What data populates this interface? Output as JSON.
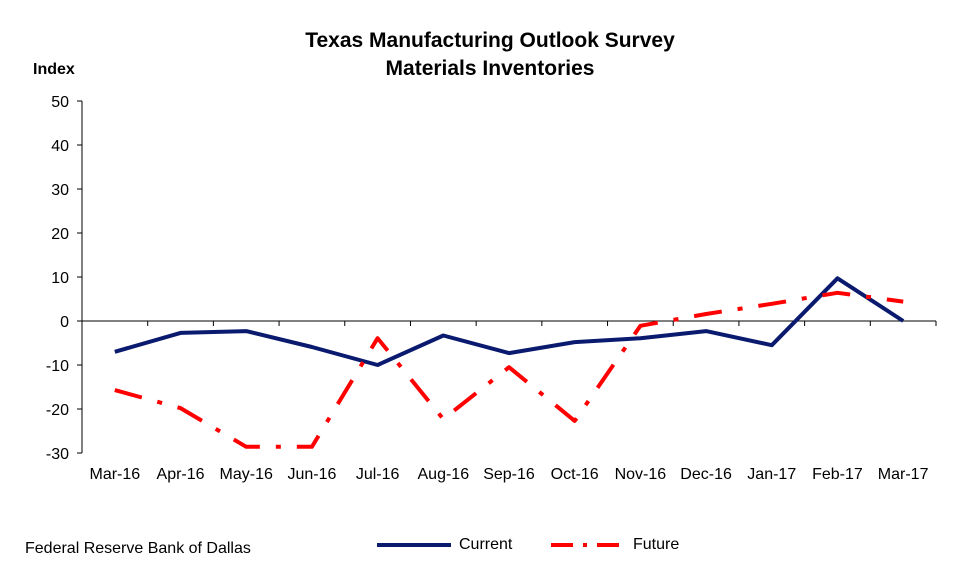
{
  "chart_data": {
    "type": "line",
    "title": "Texas Manufacturing Outlook Survey",
    "subtitle": "Materials Inventories",
    "ylabel": "Index",
    "xlabel": "",
    "ylim": [
      -30,
      50
    ],
    "yticks": [
      50,
      40,
      30,
      20,
      10,
      0,
      -10,
      -20,
      -30
    ],
    "categories": [
      "Mar-16",
      "Apr-16",
      "May-16",
      "Jun-16",
      "Jul-16",
      "Aug-16",
      "Sep-16",
      "Oct-16",
      "Nov-16",
      "Dec-16",
      "Jan-17",
      "Feb-17",
      "Mar-17"
    ],
    "series": [
      {
        "name": "Current",
        "color": "#0a1a6e",
        "style": "solid",
        "values": [
          -7.0,
          -2.7,
          -2.3,
          -5.9,
          -10.0,
          -3.3,
          -7.3,
          -4.8,
          -3.9,
          -2.3,
          -5.5,
          9.7,
          0.0
        ]
      },
      {
        "name": "Future",
        "color": "#ff0000",
        "style": "dash-dot",
        "values": [
          -15.7,
          -19.8,
          -28.6,
          -28.6,
          -3.9,
          -22.3,
          -10.5,
          -22.7,
          -1.1,
          1.6,
          3.9,
          6.4,
          4.4
        ]
      }
    ],
    "grid": false,
    "legend_position": "bottom"
  },
  "footer": {
    "source": "Federal Reserve Bank of Dallas"
  }
}
